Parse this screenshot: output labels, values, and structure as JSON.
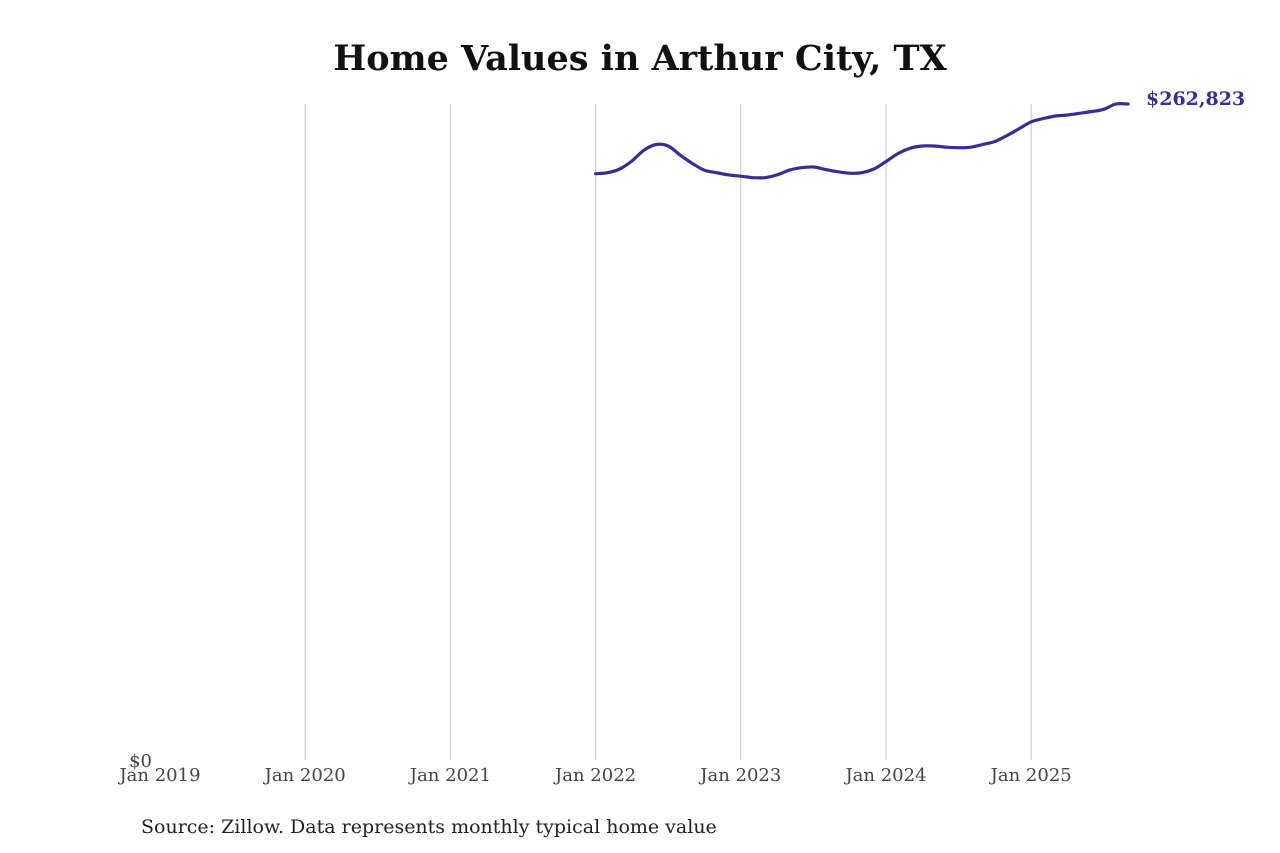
{
  "chart_data": {
    "type": "line",
    "title": "Home Values in Arthur City, TX",
    "xlabel": "",
    "ylabel": "",
    "x_ticks": [
      "Jan 2019",
      "Jan 2020",
      "Jan 2021",
      "Jan 2022",
      "Jan 2023",
      "Jan 2024",
      "Jan 2025"
    ],
    "y_ticks": [
      "$0"
    ],
    "xlim": [
      "2019-01",
      "2025-09"
    ],
    "ylim": [
      0,
      262823
    ],
    "grid": "vertical",
    "line_color": "#352f91",
    "series": [
      {
        "x": [
          "2022-01",
          "2022-02",
          "2022-03",
          "2022-04",
          "2022-05",
          "2022-06",
          "2022-07",
          "2022-08",
          "2022-09",
          "2022-10",
          "2022-11",
          "2022-12",
          "2023-01",
          "2023-02",
          "2023-03",
          "2023-04",
          "2023-05",
          "2023-06",
          "2023-07",
          "2023-08",
          "2023-09",
          "2023-10",
          "2023-11",
          "2023-12",
          "2024-01",
          "2024-02",
          "2024-03",
          "2024-04",
          "2024-05",
          "2024-06",
          "2024-07",
          "2024-08",
          "2024-09",
          "2024-10",
          "2024-11",
          "2024-12",
          "2025-01",
          "2025-02",
          "2025-03",
          "2025-04",
          "2025-05",
          "2025-06",
          "2025-07",
          "2025-08",
          "2025-09"
        ],
        "values": [
          234900,
          235300,
          236800,
          240000,
          244300,
          246600,
          246000,
          242300,
          239000,
          236300,
          235300,
          234400,
          233900,
          233300,
          233300,
          234400,
          236300,
          237300,
          237600,
          236600,
          235700,
          235100,
          235300,
          236800,
          239800,
          243000,
          245100,
          246000,
          246000,
          245500,
          245300,
          245500,
          246600,
          247800,
          250200,
          252900,
          255700,
          257000,
          258000,
          258400,
          259100,
          259800,
          260700,
          262823,
          262823
        ]
      }
    ],
    "end_label": "$262,823"
  },
  "source_note": "Source: Zillow. Data represents monthly typical home value"
}
